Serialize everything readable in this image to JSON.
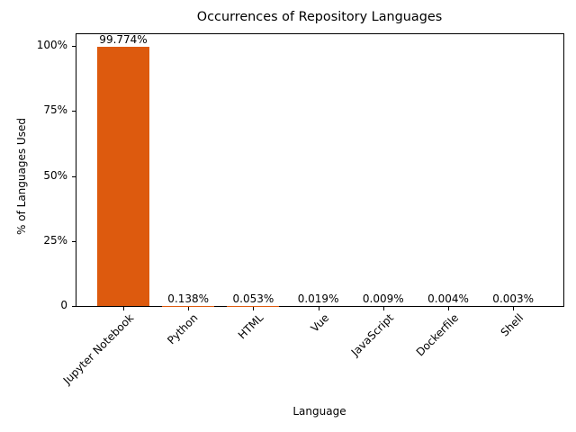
{
  "chart_data": {
    "type": "bar",
    "title": "Occurrences of Repository Languages",
    "xlabel": "Language",
    "ylabel": "% of Languages Used",
    "categories": [
      "Jupyter Notebook",
      "Python",
      "HTML",
      "Vue",
      "JavaScript",
      "Dockerfile",
      "Shell"
    ],
    "values": [
      99.774,
      0.138,
      0.053,
      0.019,
      0.009,
      0.004,
      0.003
    ],
    "value_labels": [
      "99.774%",
      "0.138%",
      "0.053%",
      "0.019%",
      "0.009%",
      "0.004%",
      "0.003%"
    ],
    "yticks": [
      0,
      25,
      50,
      75,
      100
    ],
    "ytick_labels": [
      "0",
      "25%",
      "50%",
      "75%",
      "100%"
    ],
    "ylim": [
      0,
      104.8
    ],
    "grid": false,
    "legend": null,
    "bar_color": "#dd5a0e"
  }
}
